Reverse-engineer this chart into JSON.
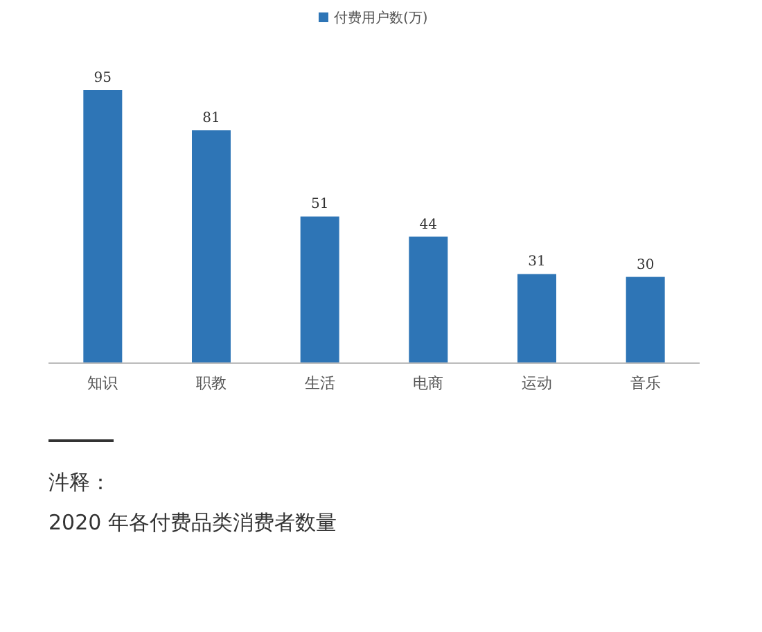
{
  "chart_data": {
    "type": "bar",
    "categories": [
      "知识",
      "职教",
      "生活",
      "电商",
      "运动",
      "音乐"
    ],
    "series": [
      {
        "name": "付费用户数(万)",
        "color": "#2e75b6",
        "values": [
          95,
          81,
          51,
          44,
          31,
          30
        ]
      }
    ],
    "data_labels": true,
    "legend": "top",
    "annotations": [
      "汼释：",
      "2020 年各付费品类消费者数量"
    ]
  }
}
